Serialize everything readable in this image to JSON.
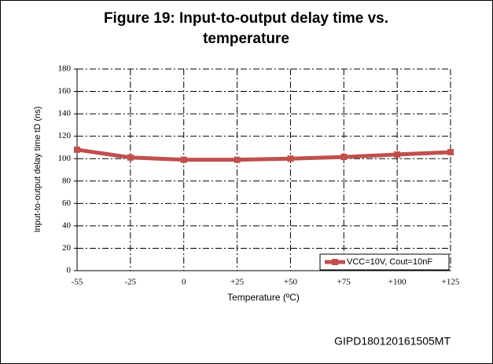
{
  "chart_data": {
    "type": "line",
    "title": "Figure 19: Input-to-output delay time vs.",
    "title_line2": "temperature",
    "x_label": "Temperature (ºC)",
    "y_label": "Input-to-output delay time tD (ns)",
    "categories": [
      "-55",
      "-25",
      "0",
      "+25",
      "+50",
      "+75",
      "+100",
      "+125"
    ],
    "series": [
      {
        "name": "VCC=10V, Cout=10nF",
        "color": "#c0504d",
        "values": [
          108,
          101,
          99,
          99,
          100,
          101.5,
          103.7,
          105.8
        ]
      }
    ],
    "ylim": [
      0,
      180
    ],
    "yticks": [
      0,
      20,
      40,
      60,
      80,
      100,
      120,
      140,
      160,
      180
    ],
    "grid": true,
    "legend": "lower right",
    "footer": "GIPD180120161505MT"
  }
}
